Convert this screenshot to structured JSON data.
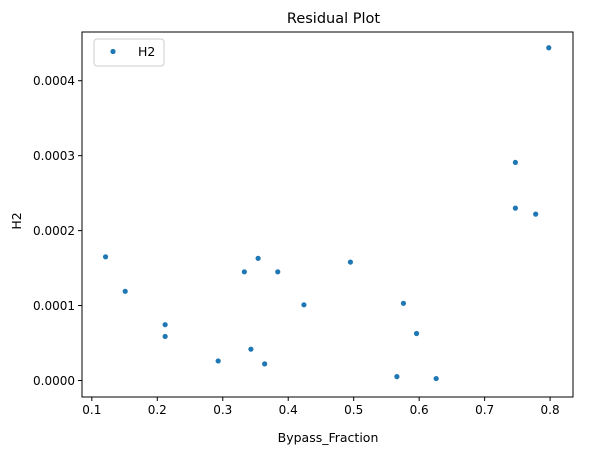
{
  "chart_data": {
    "type": "scatter",
    "title": "Residual Plot",
    "xlabel": "Bypass_Fraction",
    "ylabel": "H2",
    "xlim": [
      0.085,
      0.835
    ],
    "ylim": [
      -2.2e-05,
      0.000465
    ],
    "xticks": [
      0.1,
      0.2,
      0.3,
      0.4,
      0.5,
      0.6,
      0.7,
      0.8
    ],
    "xtick_labels": [
      "0.1",
      "0.2",
      "0.3",
      "0.4",
      "0.5",
      "0.6",
      "0.7",
      "0.8"
    ],
    "yticks": [
      0.0,
      0.0001,
      0.0002,
      0.0003,
      0.0004
    ],
    "ytick_labels": [
      "0.0000",
      "0.0001",
      "0.0002",
      "0.0003",
      "0.0004"
    ],
    "grid": false,
    "legend": {
      "position": "top-left"
    },
    "series": [
      {
        "name": "H2",
        "color": "#1f77b4",
        "points": [
          [
            0.121,
            0.000165
          ],
          [
            0.151,
            0.000119
          ],
          [
            0.212,
            7.45e-05
          ],
          [
            0.212,
            5.88e-05
          ],
          [
            0.293,
            2.61e-05
          ],
          [
            0.333,
            0.000145
          ],
          [
            0.343,
            4.18e-05
          ],
          [
            0.354,
            0.000163
          ],
          [
            0.364,
            2.22e-05
          ],
          [
            0.384,
            0.000145
          ],
          [
            0.424,
            0.000101
          ],
          [
            0.495,
            0.000158
          ],
          [
            0.566,
            5.2e-06
          ],
          [
            0.576,
            0.000103
          ],
          [
            0.596,
            6.27e-05
          ],
          [
            0.626,
            2.6e-06
          ],
          [
            0.747,
            0.000291
          ],
          [
            0.747,
            0.00023
          ],
          [
            0.778,
            0.000222
          ],
          [
            0.798,
            0.000444
          ]
        ]
      }
    ]
  }
}
